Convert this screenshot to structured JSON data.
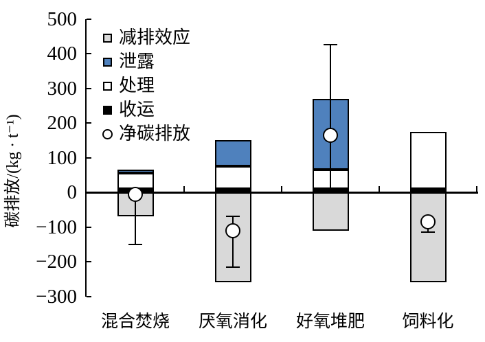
{
  "chart_data": {
    "type": "bar",
    "subtype": "stacked-bar-with-net-markers-and-error-bars",
    "title": "",
    "xlabel": "",
    "ylabel": "碳排放/(kg · t⁻¹)",
    "ylim": [
      -300,
      500
    ],
    "yticks": [
      500,
      400,
      300,
      200,
      100,
      0,
      -100,
      -200,
      -300
    ],
    "ytick_labels": [
      "500",
      "400",
      "300",
      "200",
      "100",
      "0",
      "−100",
      "−200",
      "−300"
    ],
    "grid": false,
    "legend_position": "top-left-inside",
    "categories": [
      "混合焚烧",
      "厌氧消化",
      "好氧堆肥",
      "饲料化"
    ],
    "series": [
      {
        "key": "collection",
        "name": "收运",
        "color": "#000000",
        "values": [
          10,
          10,
          10,
          10
        ]
      },
      {
        "key": "treatment",
        "name": "处理",
        "color": "#ffffff",
        "values": [
          45,
          65,
          55,
          165
        ]
      },
      {
        "key": "leakage",
        "name": "泄露",
        "color": "#4f81bd",
        "values": [
          10,
          75,
          205,
          0
        ]
      },
      {
        "key": "reduction",
        "name": "减排效应",
        "color": "#d9d9d9",
        "values": [
          -70,
          -260,
          -110,
          -260
        ]
      }
    ],
    "net_series": {
      "key": "net",
      "name": "净碳排放",
      "marker": "circle",
      "marker_fill": "#ffffff",
      "values": [
        -5,
        -110,
        165,
        -85
      ]
    },
    "error_bars": [
      {
        "top": -5,
        "bottom": -150,
        "top_cap": false,
        "bottom_cap": true
      },
      {
        "top": -70,
        "bottom": -215,
        "top_cap": true,
        "bottom_cap": true
      },
      {
        "top": 425,
        "bottom": 10,
        "top_cap": true,
        "bottom_cap": false
      },
      {
        "top": -85,
        "bottom": -115,
        "top_cap": false,
        "bottom_cap": true
      }
    ],
    "legend": [
      {
        "label": "减排效应",
        "marker": "square",
        "color": "#d9d9d9"
      },
      {
        "label": "泄露",
        "marker": "square",
        "color": "#4f81bd"
      },
      {
        "label": "处理",
        "marker": "square",
        "color": "#ffffff"
      },
      {
        "label": "收运",
        "marker": "square",
        "color": "#000000"
      },
      {
        "label": "净碳排放",
        "marker": "circle",
        "color": "#ffffff"
      }
    ],
    "colors": {
      "axis": "#000000",
      "bar_border": "#000000",
      "leakage_blue": "#4f81bd",
      "reduction_gray": "#d9d9d9"
    }
  }
}
